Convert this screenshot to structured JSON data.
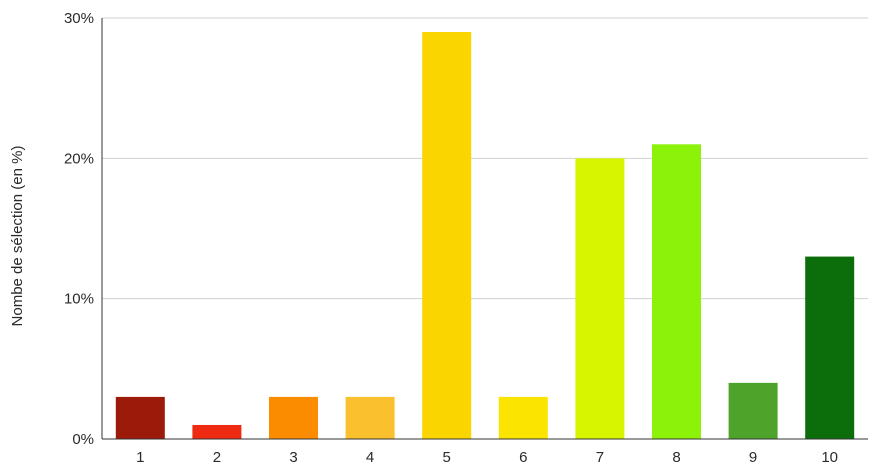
{
  "chart_data": {
    "type": "bar",
    "title": "",
    "xlabel": "",
    "ylabel": "Nombe de sélection (en %)",
    "categories": [
      "1",
      "2",
      "3",
      "4",
      "5",
      "6",
      "7",
      "8",
      "9",
      "10"
    ],
    "values": [
      3,
      1,
      3,
      3,
      29,
      3,
      20,
      21,
      4,
      13
    ],
    "colors": [
      "#9b1a0a",
      "#ee2a12",
      "#fb8c00",
      "#fbc02d",
      "#fbd500",
      "#fbe400",
      "#d8f500",
      "#8df20a",
      "#4ea32a",
      "#0b6e0b"
    ],
    "ylim": [
      0,
      30
    ],
    "yticks": [
      {
        "value": 0,
        "label": "0%"
      },
      {
        "value": 10,
        "label": "10%"
      },
      {
        "value": 20,
        "label": "20%"
      },
      {
        "value": 30,
        "label": "30%"
      }
    ],
    "grid": true,
    "legend": "none"
  }
}
